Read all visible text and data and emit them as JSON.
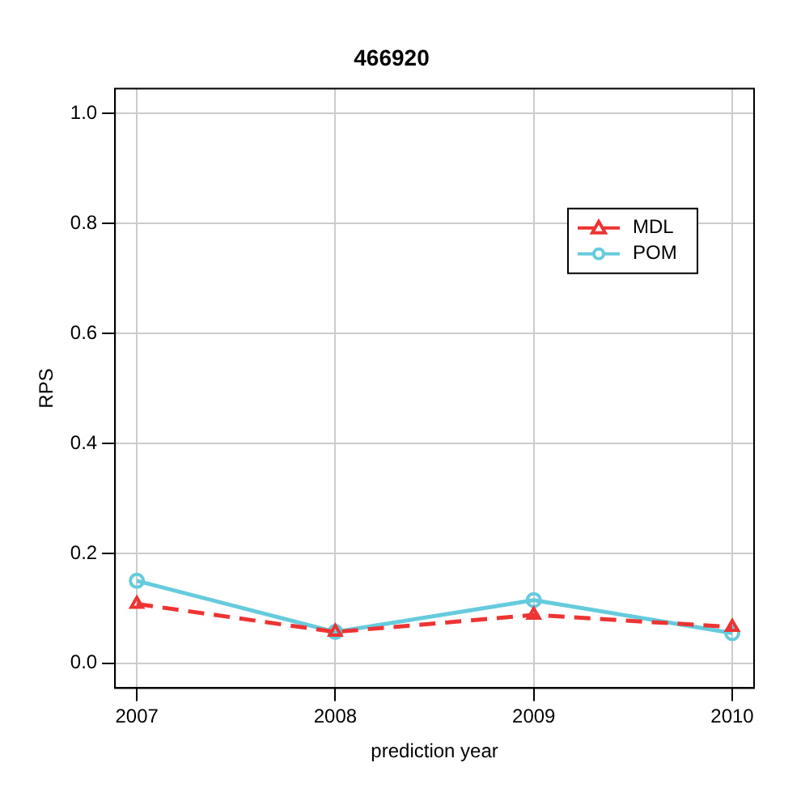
{
  "chart_data": {
    "type": "line",
    "title": "466920",
    "xlabel": "prediction year",
    "ylabel": "RPS",
    "x": [
      2007,
      2008,
      2009,
      2010
    ],
    "series": [
      {
        "name": "MDL",
        "color": "#ee3333",
        "values": [
          0.108,
          0.057,
          0.088,
          0.066
        ],
        "marker": "triangle",
        "line_style": "dashed"
      },
      {
        "name": "POM",
        "color": "#66ccdd",
        "values": [
          0.15,
          0.057,
          0.115,
          0.055
        ],
        "marker": "circle",
        "line_style": "solid"
      }
    ],
    "xlim": [
      2006.89,
      2010.11
    ],
    "xticks": [
      2007,
      2008,
      2009,
      2010
    ],
    "ylim": [
      -0.045,
      1.045
    ],
    "yticks": [
      {
        "value": 0,
        "label": "0.0"
      },
      0.2,
      0.4,
      0.6,
      0.8,
      {
        "value": 1,
        "label": "1.0"
      }
    ],
    "grid": true,
    "legend": "top right"
  }
}
